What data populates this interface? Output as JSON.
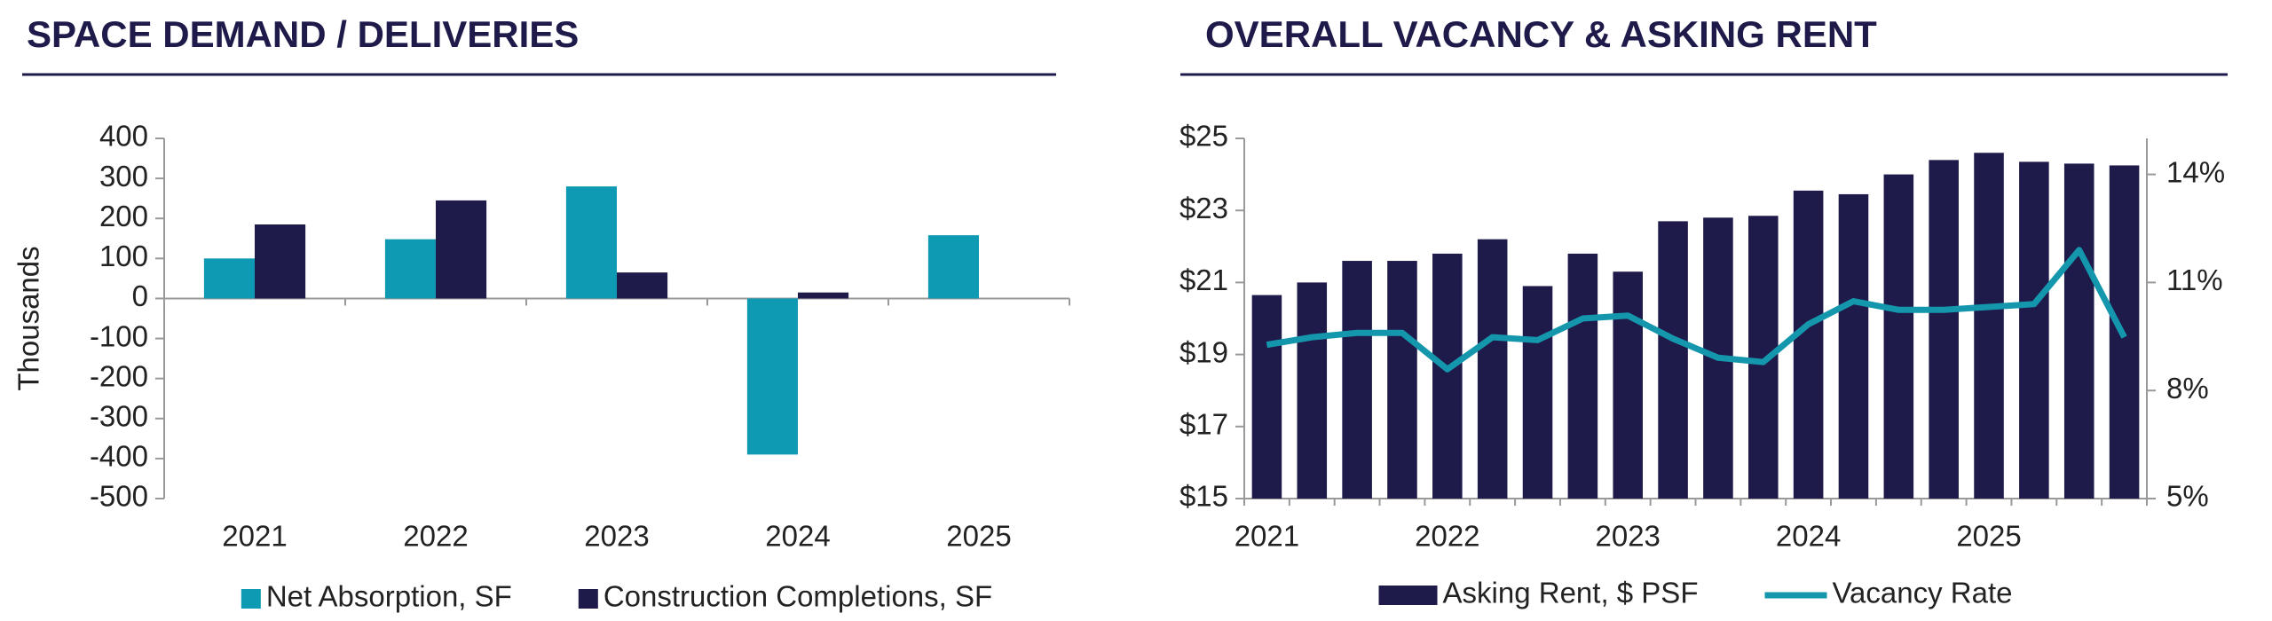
{
  "chart_data": [
    {
      "type": "bar",
      "title": "SPACE DEMAND / DELIVERIES",
      "y_label": "Thousands",
      "categories": [
        "2021",
        "2022",
        "2023",
        "2024",
        "2025"
      ],
      "series": [
        {
          "name": "Net Absorption, SF",
          "color": "#0e9ab3",
          "values": [
            100,
            148,
            280,
            -390,
            158
          ]
        },
        {
          "name": "Construction Completions, SF",
          "color": "#1e1b4b",
          "values": [
            185,
            245,
            65,
            15,
            null
          ]
        }
      ],
      "ylim": [
        -500,
        400
      ],
      "yticks": [
        -500,
        -400,
        -300,
        -200,
        -100,
        0,
        100,
        200,
        300,
        400
      ]
    },
    {
      "type": "bar-line",
      "title": "OVERALL VACANCY & ASKING RENT",
      "categories": [
        "2021",
        null,
        null,
        null,
        "2022",
        null,
        null,
        null,
        "2023",
        null,
        null,
        null,
        "2024",
        null,
        null,
        null,
        "2025",
        null,
        null,
        null
      ],
      "series": [
        {
          "name": "Asking Rent, $ PSF",
          "color": "#1e1b4b",
          "values": [
            20.65,
            21.0,
            21.6,
            21.6,
            21.8,
            22.2,
            20.9,
            21.8,
            21.3,
            22.7,
            22.8,
            22.85,
            23.55,
            23.45,
            24.0,
            24.4,
            24.6,
            24.35,
            24.3,
            24.25
          ]
        },
        {
          "name": "Vacancy Rate",
          "color": "#1497ad",
          "axis": "y2",
          "values": [
            9.27,
            9.48,
            9.6,
            9.6,
            8.59,
            9.48,
            9.4,
            10.0,
            10.08,
            9.44,
            8.91,
            8.79,
            9.84,
            10.48,
            10.24,
            10.24,
            10.32,
            10.4,
            11.9,
            9.48
          ]
        }
      ],
      "ylim": [
        15,
        25
      ],
      "yticks": [
        {
          "value": 15,
          "label": "$15"
        },
        {
          "value": 17,
          "label": "$17"
        },
        {
          "value": 19,
          "label": "$19"
        },
        {
          "value": 21,
          "label": "$21"
        },
        {
          "value": 23,
          "label": "$23"
        },
        {
          "value": 25,
          "label": "$25"
        }
      ],
      "y2lim": [
        5,
        15
      ],
      "y2ticks": [
        {
          "value": 5,
          "label": "5%"
        },
        {
          "value": 8,
          "label": "8%"
        },
        {
          "value": 11,
          "label": "11%"
        },
        {
          "value": 14,
          "label": "14%"
        }
      ]
    }
  ]
}
